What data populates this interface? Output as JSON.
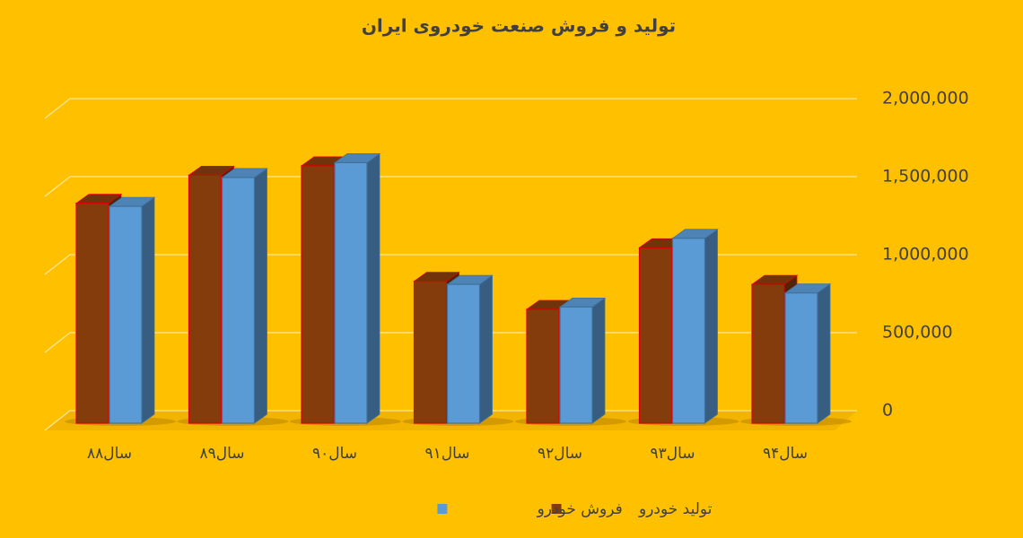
{
  "chart_data": {
    "type": "bar3d",
    "title": "تولید و فروش صنعت خودروی ایران",
    "categories": [
      "سال۸۸",
      "سال۸۹",
      "سال۹۰",
      "سال۹۱",
      "سال۹۲",
      "سال۹۳",
      "سال۹۴"
    ],
    "series": [
      {
        "name": "تولید خودرو",
        "color": "#843C0C",
        "values": [
          1410000,
          1590000,
          1650000,
          910000,
          730000,
          1125000,
          890000
        ]
      },
      {
        "name": "فروش خودرو",
        "color": "#5B9BD5",
        "values": [
          1390000,
          1575000,
          1670000,
          890000,
          745000,
          1185000,
          835000
        ]
      }
    ],
    "ylim": [
      0,
      2000000
    ],
    "yticks": [
      0,
      {
        "value": 500000,
        "label": "500,000"
      },
      {
        "value": 1000000,
        "label": "1,000,000"
      },
      {
        "value": 1500000,
        "label": "1,500,000"
      },
      {
        "value": 2000000,
        "label": "2,000,000"
      }
    ],
    "grid": true
  }
}
